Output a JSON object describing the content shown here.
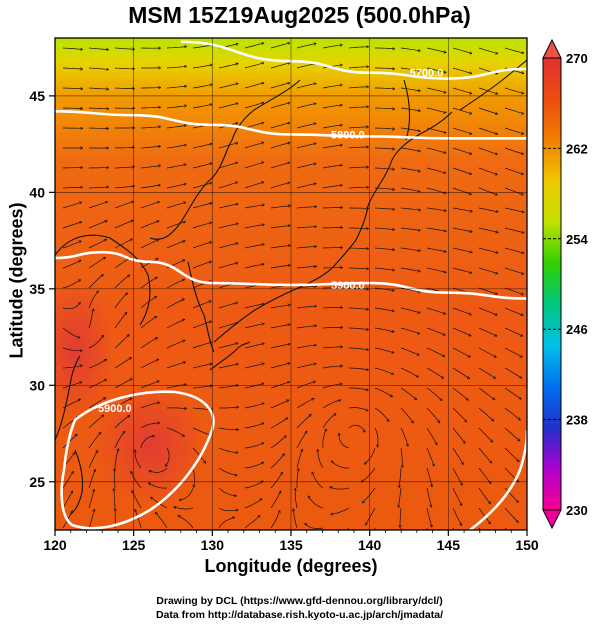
{
  "title": "MSM 15Z19Aug2025 (500.0hPa)",
  "xaxis": {
    "label": "Longitude (degrees)",
    "ticks": [
      120,
      125,
      130,
      135,
      140,
      145,
      150
    ]
  },
  "yaxis": {
    "label": "Latitude  (degrees)",
    "ticks": [
      25,
      30,
      35,
      40,
      45
    ]
  },
  "map_extent": {
    "lon": [
      120,
      150
    ],
    "lat": [
      22.5,
      48
    ]
  },
  "colorbar": {
    "ticks": [
      "270",
      "262",
      "254",
      "246",
      "238",
      "230"
    ],
    "range": [
      230,
      270
    ],
    "colors": [
      "#f7008f",
      "#b000d0",
      "#2030c8",
      "#0070f0",
      "#00c0e8",
      "#00c880",
      "#30d000",
      "#c0e000",
      "#f0c800",
      "#f08000",
      "#ec4c10",
      "#e03030"
    ]
  },
  "contours": [
    {
      "label": "5700.0",
      "lat_at_lon": [
        [
          128,
          47.8
        ],
        [
          135,
          46.8
        ],
        [
          140,
          46.2
        ],
        [
          145,
          45.9
        ],
        [
          150,
          46.4
        ]
      ]
    },
    {
      "label": "5800.0",
      "lat_at_lon": [
        [
          120,
          44.2
        ],
        [
          125,
          44.0
        ],
        [
          130,
          43.5
        ],
        [
          135,
          43.0
        ],
        [
          140,
          42.9
        ],
        [
          145,
          42.8
        ],
        [
          150,
          42.8
        ]
      ]
    },
    {
      "label": "5900.0",
      "lat_at_lon": [
        [
          120,
          36.6
        ],
        [
          123,
          36.9
        ],
        [
          126,
          36.4
        ],
        [
          130,
          35.3
        ],
        [
          135,
          35.2
        ],
        [
          140,
          35.3
        ],
        [
          145,
          34.8
        ],
        [
          150,
          34.5
        ]
      ]
    }
  ],
  "high_contour": {
    "label": "5900.0",
    "center": [
      126.5,
      27.5
    ]
  },
  "temperature_field": "warm orange-red across domain, yellow-green band north of 45N",
  "credits": {
    "line1": "Drawing by DCL (https://www.gfd-dennou.org/library/dcl/)",
    "line2": "Data from http://database.rish.kyoto-u.ac.jp/arch/jmadata/"
  }
}
